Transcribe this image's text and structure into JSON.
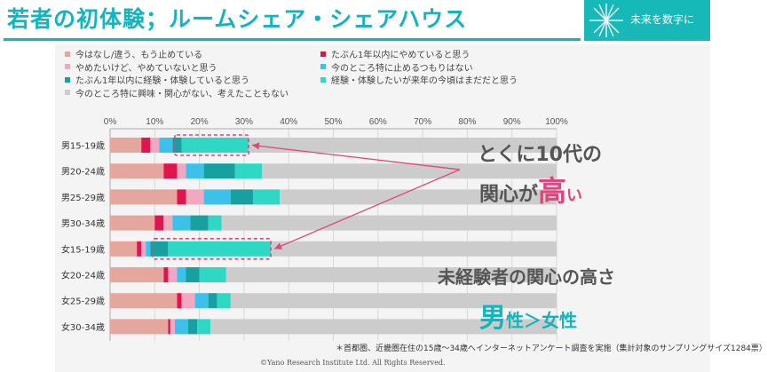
{
  "header": {
    "title": "若者の初体験；ルームシェア・シェアハウス",
    "logo_text": "未来を数字に"
  },
  "colors": {
    "accent": "#11b5bd",
    "callout": "#e0457b",
    "annotation_text": "#555555"
  },
  "legend": [
    {
      "label": "今はなし/違う、もう止めている",
      "color": "#e5a79d"
    },
    {
      "label": "たぶん1年以内にやめていると思う",
      "color": "#e0154e"
    },
    {
      "label": "やめたいけど、やめていないと思う",
      "color": "#f3a8c2"
    },
    {
      "label": "今のところ特に止めるつもりはない",
      "color": "#3cc1ea"
    },
    {
      "label": "たぶん1年以内に経験・体験していると思う",
      "color": "#17a0a0"
    },
    {
      "label": "経験・体験したいが来年の今頃はまだだと思う",
      "color": "#2fd8c4"
    },
    {
      "label": "今のところ特に興味・関心がない、考えたこともない",
      "color": "#cccccc"
    }
  ],
  "chart_data": {
    "type": "bar",
    "orientation": "horizontal",
    "stacked": true,
    "categories": [
      "男15-19歳",
      "男20-24歳",
      "男25-29歳",
      "男30-34歳",
      "女15-19歳",
      "女20-24歳",
      "女25-29歳",
      "女30-34歳"
    ],
    "xlim": [
      0,
      100
    ],
    "xticks": [
      "0%",
      "10%",
      "20%",
      "30%",
      "40%",
      "50%",
      "60%",
      "70%",
      "80%",
      "90%",
      "100%"
    ],
    "grid": true,
    "series": [
      {
        "name": "今はなし/違う、もう止めている",
        "color": "#e5a79d",
        "values": [
          7,
          12,
          15,
          10,
          6,
          12,
          15,
          13
        ]
      },
      {
        "name": "たぶん1年以内にやめていると思う",
        "color": "#e0154e",
        "values": [
          2,
          3,
          2,
          2,
          1,
          1,
          1,
          0.5
        ]
      },
      {
        "name": "やめたいけど、やめていないと思う",
        "color": "#f3a8c2",
        "values": [
          2,
          2,
          4,
          2,
          1,
          2,
          3,
          1
        ]
      },
      {
        "name": "今のところ特に止めるつもりはない",
        "color": "#3cc1ea",
        "values": [
          3,
          4,
          6,
          4,
          1,
          2,
          3,
          3
        ]
      },
      {
        "name": "たぶん1年以内に経験・体験していると思う",
        "color": "#17a0a0",
        "values": [
          2,
          7,
          5,
          4,
          4,
          3,
          2,
          2
        ]
      },
      {
        "name": "経験・体験したいが来年の今頃はまだだと思う",
        "color": "#2fd8c4",
        "values": [
          15,
          6,
          6,
          3,
          23,
          6,
          3,
          3
        ]
      },
      {
        "name": "今のところ特に興味・関心がない、考えたこともない",
        "color": "#cccccc",
        "values": [
          69,
          66,
          62,
          75,
          64,
          74,
          73,
          77.5
        ]
      }
    ],
    "annotations": [
      "とくに10代の",
      "関心が",
      "高",
      "い",
      "未経験者の関心の高さ",
      "男",
      "性＞",
      "女性"
    ],
    "highlight_boxes": [
      {
        "category": "男15-19歳",
        "from": 14.5,
        "to": 31
      },
      {
        "category": "女15-19歳",
        "from": 9.5,
        "to": 36
      }
    ]
  },
  "footnote": "＊首都圏、近畿圏在住の15歳〜34歳へインターネットアンケート調査を実施（集計対象のサンプリングサイズ1284票）",
  "copyright": "©Yano Research Institute Ltd. All Rights Reserved."
}
